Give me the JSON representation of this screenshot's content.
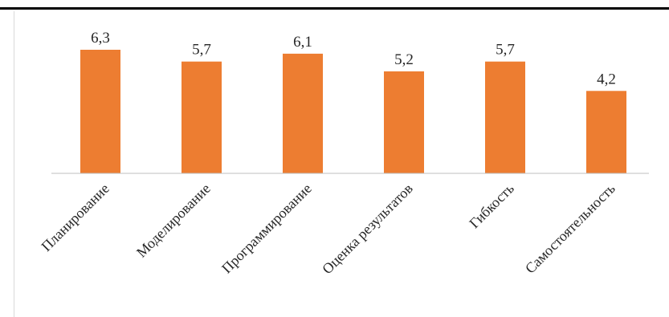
{
  "chart_data": {
    "type": "bar",
    "categories": [
      "Планирование",
      "Моделирование",
      "Программирование",
      "Оценка результатов",
      "Гибкость",
      "Самостоятельность"
    ],
    "values": [
      6.3,
      5.7,
      6.1,
      5.2,
      5.7,
      4.2
    ],
    "value_labels": [
      "6,3",
      "5,7",
      "6,1",
      "5,2",
      "5,7",
      "4,2"
    ],
    "ylim": [
      0,
      6.3
    ],
    "grid": false,
    "legend": "none",
    "bar_color": "#ed7d31",
    "axis_color": "#bfbfbf"
  }
}
